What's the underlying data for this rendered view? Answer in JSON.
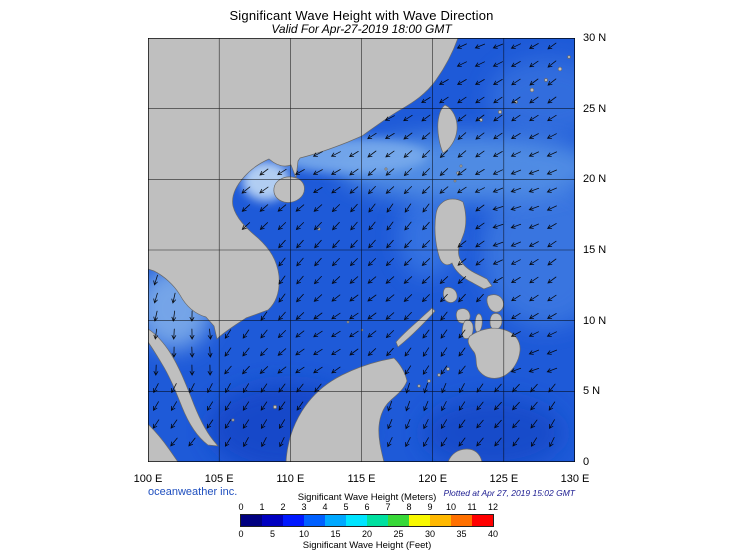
{
  "header": {
    "title": "Significant Wave Height with Wave Direction",
    "subtitle": "Valid For Apr-27-2019 18:00 GMT"
  },
  "axes": {
    "lat_labels": [
      "30 N",
      "25 N",
      "20 N",
      "15 N",
      "10 N",
      "5 N",
      "0"
    ],
    "lon_labels": [
      "100 E",
      "105 E",
      "110 E",
      "115 E",
      "120 E",
      "125 E",
      "130 E"
    ]
  },
  "footer": {
    "credit": "oceanweather inc.",
    "plotted": "Plotted at Apr 27, 2019 15:02 GMT"
  },
  "colorbar": {
    "title_meters": "Significant Wave Height (Meters)",
    "title_feet": "Significant Wave Height (Feet)",
    "meters_ticks": [
      "0",
      "1",
      "2",
      "3",
      "4",
      "5",
      "6",
      "7",
      "8",
      "9",
      "10",
      "11",
      "12"
    ],
    "feet_ticks": [
      "0",
      "5",
      "10",
      "15",
      "20",
      "25",
      "30",
      "35",
      "40"
    ],
    "colors": [
      "#000080",
      "#0000c0",
      "#0018ff",
      "#0060ff",
      "#00a8ff",
      "#00e4ff",
      "#00e0a0",
      "#38d838",
      "#f8f800",
      "#ffb800",
      "#ff7000",
      "#ff0000"
    ]
  },
  "map": {
    "sea_color": "#1e5ad8",
    "land_color": "#bfbfbf",
    "grid_color": "#000000",
    "arrow_color": "#000000"
  }
}
